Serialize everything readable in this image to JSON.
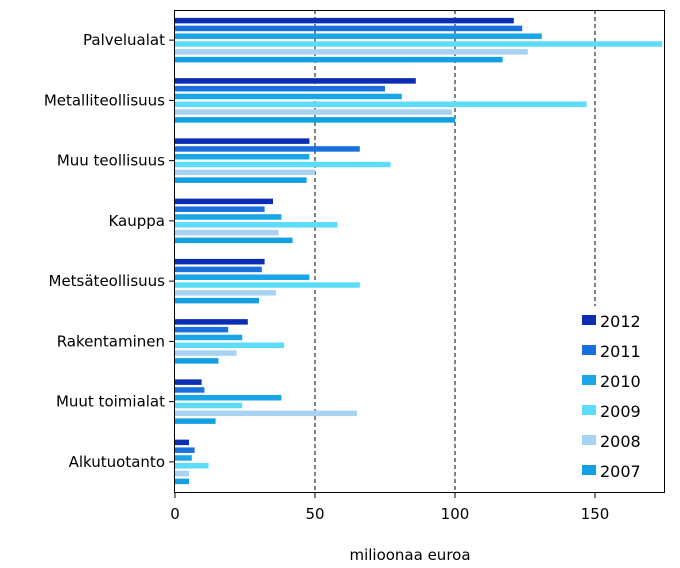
{
  "chart_data": {
    "type": "bar",
    "orientation": "horizontal",
    "title": "",
    "xlabel": "milioonaa euroa",
    "ylabel": "",
    "xlim": [
      0,
      175
    ],
    "xticks": [
      0,
      50,
      100,
      150
    ],
    "grid": "vertical dashed at 50, 100, 150",
    "legend_position": "bottom-right",
    "categories": [
      "Palvelualat",
      "Metalliteollisuus",
      "Muu teollisuus",
      "Kauppa",
      "Metsäteollisuus",
      "Rakentaminen",
      "Muut toimialat",
      "Alkutuotanto"
    ],
    "series": [
      {
        "name": "2012",
        "color": "#0a2db3",
        "values": [
          121,
          86,
          48,
          35,
          32,
          26,
          9.5,
          5
        ]
      },
      {
        "name": "2011",
        "color": "#1a6fde",
        "values": [
          124,
          75,
          66,
          32,
          31,
          19,
          10.5,
          7
        ]
      },
      {
        "name": "2010",
        "color": "#1aa5e6",
        "values": [
          131,
          81,
          48,
          38,
          48,
          24,
          38,
          6
        ]
      },
      {
        "name": "2009",
        "color": "#5ddcf9",
        "values": [
          174,
          147,
          77,
          58,
          66,
          39,
          24,
          12
        ]
      },
      {
        "name": "2008",
        "color": "#a8d2f1",
        "values": [
          126,
          99,
          50,
          37,
          36,
          22,
          65,
          5
        ]
      },
      {
        "name": "2007",
        "color": "#13a0e3",
        "values": [
          117,
          100,
          47,
          42,
          30,
          15.5,
          14.5,
          5
        ]
      }
    ]
  }
}
